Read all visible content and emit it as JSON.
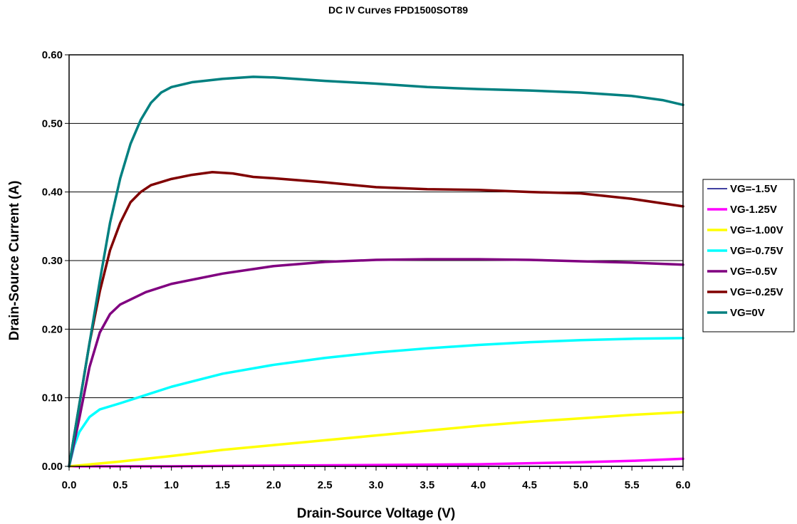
{
  "chart_data": {
    "type": "line",
    "title": "DC IV Curves FPD1500SOT89",
    "xlabel": "Drain-Source Voltage (V)",
    "ylabel": "Drain-Source Current (A)",
    "xlim": [
      0,
      6.0
    ],
    "ylim": [
      0,
      0.6
    ],
    "x_ticks": [
      "0.0",
      "0.5",
      "1.0",
      "1.5",
      "2.0",
      "2.5",
      "3.0",
      "3.5",
      "4.0",
      "4.5",
      "5.0",
      "5.5",
      "6.0"
    ],
    "y_ticks": [
      "0.00",
      "0.10",
      "0.20",
      "0.30",
      "0.40",
      "0.50",
      "0.60"
    ],
    "grid": "horizontal",
    "legend_position": "right",
    "series": [
      {
        "name": "VG=-1.5V",
        "color": "#000080",
        "points": [
          [
            0,
            0
          ],
          [
            1.0,
            0
          ],
          [
            2.0,
            0
          ],
          [
            3.0,
            0
          ],
          [
            4.0,
            0
          ],
          [
            5.0,
            0
          ],
          [
            6.0,
            0
          ]
        ]
      },
      {
        "name": "VG-1.25V",
        "color": "#FF00FF",
        "points": [
          [
            0,
            0
          ],
          [
            1.0,
            0
          ],
          [
            2.0,
            0.001
          ],
          [
            3.0,
            0.002
          ],
          [
            4.0,
            0.003
          ],
          [
            5.0,
            0.006
          ],
          [
            5.5,
            0.008
          ],
          [
            6.0,
            0.011
          ]
        ]
      },
      {
        "name": "VG=-1.00V",
        "color": "#FFFF00",
        "points": [
          [
            0,
            0
          ],
          [
            0.5,
            0.007
          ],
          [
            1.0,
            0.015
          ],
          [
            1.5,
            0.024
          ],
          [
            2.0,
            0.031
          ],
          [
            2.5,
            0.038
          ],
          [
            3.0,
            0.045
          ],
          [
            3.5,
            0.052
          ],
          [
            4.0,
            0.059
          ],
          [
            4.5,
            0.065
          ],
          [
            5.0,
            0.07
          ],
          [
            5.5,
            0.075
          ],
          [
            6.0,
            0.079
          ]
        ]
      },
      {
        "name": "VG=-0.75V",
        "color": "#00FFFF",
        "points": [
          [
            0,
            0
          ],
          [
            0.05,
            0.03
          ],
          [
            0.1,
            0.05
          ],
          [
            0.2,
            0.072
          ],
          [
            0.3,
            0.083
          ],
          [
            0.5,
            0.092
          ],
          [
            0.75,
            0.104
          ],
          [
            1.0,
            0.116
          ],
          [
            1.5,
            0.135
          ],
          [
            2.0,
            0.148
          ],
          [
            2.5,
            0.158
          ],
          [
            3.0,
            0.166
          ],
          [
            3.5,
            0.172
          ],
          [
            4.0,
            0.177
          ],
          [
            4.5,
            0.181
          ],
          [
            5.0,
            0.184
          ],
          [
            5.5,
            0.186
          ],
          [
            6.0,
            0.187
          ]
        ]
      },
      {
        "name": "VG=-0.5V",
        "color": "#800080",
        "points": [
          [
            0,
            0
          ],
          [
            0.1,
            0.07
          ],
          [
            0.2,
            0.145
          ],
          [
            0.3,
            0.195
          ],
          [
            0.4,
            0.222
          ],
          [
            0.5,
            0.236
          ],
          [
            0.75,
            0.254
          ],
          [
            1.0,
            0.266
          ],
          [
            1.5,
            0.281
          ],
          [
            2.0,
            0.292
          ],
          [
            2.5,
            0.298
          ],
          [
            3.0,
            0.301
          ],
          [
            3.5,
            0.302
          ],
          [
            4.0,
            0.302
          ],
          [
            4.5,
            0.301
          ],
          [
            5.0,
            0.299
          ],
          [
            5.5,
            0.297
          ],
          [
            6.0,
            0.294
          ]
        ]
      },
      {
        "name": "VG=-0.25V",
        "color": "#800000",
        "points": [
          [
            0,
            0
          ],
          [
            0.1,
            0.09
          ],
          [
            0.2,
            0.18
          ],
          [
            0.3,
            0.255
          ],
          [
            0.4,
            0.315
          ],
          [
            0.5,
            0.355
          ],
          [
            0.6,
            0.385
          ],
          [
            0.7,
            0.4
          ],
          [
            0.8,
            0.41
          ],
          [
            1.0,
            0.419
          ],
          [
            1.2,
            0.425
          ],
          [
            1.4,
            0.429
          ],
          [
            1.6,
            0.427
          ],
          [
            1.8,
            0.422
          ],
          [
            2.0,
            0.42
          ],
          [
            2.5,
            0.414
          ],
          [
            3.0,
            0.407
          ],
          [
            3.5,
            0.404
          ],
          [
            4.0,
            0.403
          ],
          [
            4.5,
            0.4
          ],
          [
            5.0,
            0.398
          ],
          [
            5.5,
            0.39
          ],
          [
            6.0,
            0.379
          ]
        ]
      },
      {
        "name": "VG=0V",
        "color": "#008080",
        "points": [
          [
            0,
            0
          ],
          [
            0.1,
            0.09
          ],
          [
            0.2,
            0.18
          ],
          [
            0.3,
            0.27
          ],
          [
            0.4,
            0.355
          ],
          [
            0.5,
            0.42
          ],
          [
            0.6,
            0.47
          ],
          [
            0.7,
            0.505
          ],
          [
            0.8,
            0.53
          ],
          [
            0.9,
            0.545
          ],
          [
            1.0,
            0.553
          ],
          [
            1.2,
            0.56
          ],
          [
            1.5,
            0.565
          ],
          [
            1.8,
            0.568
          ],
          [
            2.0,
            0.567
          ],
          [
            2.5,
            0.562
          ],
          [
            3.0,
            0.558
          ],
          [
            3.5,
            0.553
          ],
          [
            4.0,
            0.55
          ],
          [
            4.5,
            0.548
          ],
          [
            5.0,
            0.545
          ],
          [
            5.5,
            0.54
          ],
          [
            5.8,
            0.534
          ],
          [
            6.0,
            0.527
          ]
        ]
      }
    ]
  }
}
